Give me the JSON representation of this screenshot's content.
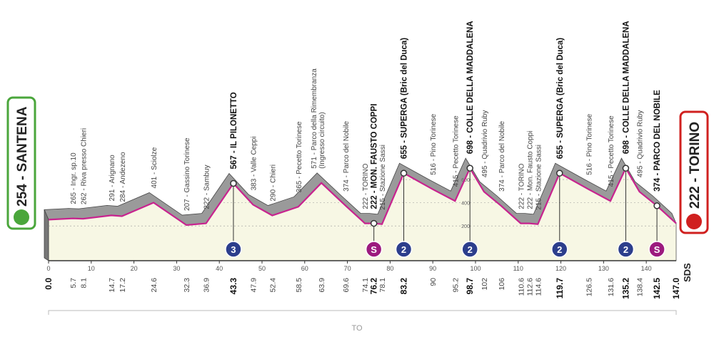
{
  "start": "254 - SANTENA",
  "finish": "222 - TORINO",
  "logo": "SDS",
  "route_label": "TO",
  "chart_data": {
    "type": "area",
    "x": [
      {
        "value": 0,
        "label": "0.0"
      },
      5.7,
      8.1,
      14.7,
      17.2,
      24.6,
      32.3,
      36.9,
      43.3,
      47.9,
      52.4,
      58.5,
      63.9,
      69.6,
      74.1,
      76.2,
      78.1,
      83.2,
      90.0,
      95.2,
      98.7,
      102.0,
      106.0,
      110.6,
      112.6,
      114.6,
      119.7,
      126.5,
      131.6,
      135.2,
      138.4,
      142.5,
      {
        "value": 147,
        "label": "147.0"
      }
    ],
    "values": [
      254,
      265,
      262,
      291,
      284,
      401,
      207,
      222,
      567,
      383,
      290,
      365,
      571,
      374,
      222,
      222,
      215,
      655,
      516,
      415,
      698,
      495,
      374,
      222,
      222,
      215,
      655,
      516,
      415,
      698,
      495,
      374,
      222
    ],
    "point_labels": [
      null,
      "265 - Ingr. sp.10",
      "262 - Riva presso Chieri",
      "291 - Arignano",
      "284 - Andezeno",
      "401 - Sciolze",
      "207 - Gassino Torinese",
      "222 - Sambuy",
      "567 - IL PILONETTO",
      "383 - Valle Ceppi",
      "290 - Chieri",
      "365 - Pecetto Torinese",
      [
        "571 - Parco della Rimembranza",
        "(Ingresso circuito)"
      ],
      "374 - Parco del Nobile",
      "222 - TORINO",
      "222 - MON. FAUSTO COPPI",
      "215 - Stazione Sassi",
      "655 - SUPERGA (Bric del Duca)",
      "516 - Pino Torinese",
      "415 - Pecetto Torinese",
      "698 - COLLE DELLA MADDALENA",
      "495 - Quadrivio Ruby",
      "374 - Parco del Nobile",
      "222 - TORINO",
      "222 - Mon. Fausto Coppi",
      "215 - Stazione Sassi",
      "655 - SUPERGA (Bric del Duca)",
      "516 - Pino Torinese",
      "415 - Pecetto Torinese",
      "698 - COLLE DELLA MADDALENA",
      "495 - Quadrivio Ruby",
      "374 - PARCO DEL NOBILE",
      null
    ],
    "bold_labels": [
      8,
      15,
      17,
      20,
      26,
      29,
      31
    ],
    "badges": [
      {
        "x": 43.3,
        "label": "3",
        "color": "#2c3e8c"
      },
      {
        "x": 76.2,
        "label": "S",
        "color": "#9c1a7e"
      },
      {
        "x": 83.2,
        "label": "2",
        "color": "#2c3e8c"
      },
      {
        "x": 98.7,
        "label": "2",
        "color": "#2c3e8c"
      },
      {
        "x": 119.7,
        "label": "2",
        "color": "#2c3e8c"
      },
      {
        "x": 135.2,
        "label": "2",
        "color": "#2c3e8c"
      },
      {
        "x": 142.5,
        "label": "S",
        "color": "#9c1a7e"
      }
    ],
    "color": "#c8238f",
    "xlim": [
      0,
      147
    ],
    "xticks": [
      0,
      10,
      20,
      30,
      40,
      50,
      60,
      70,
      80,
      90,
      100,
      110,
      120,
      130,
      140
    ],
    "ylim": [
      -100,
      1000
    ],
    "yticks": [
      200,
      400,
      600
    ],
    "grid": true
  }
}
